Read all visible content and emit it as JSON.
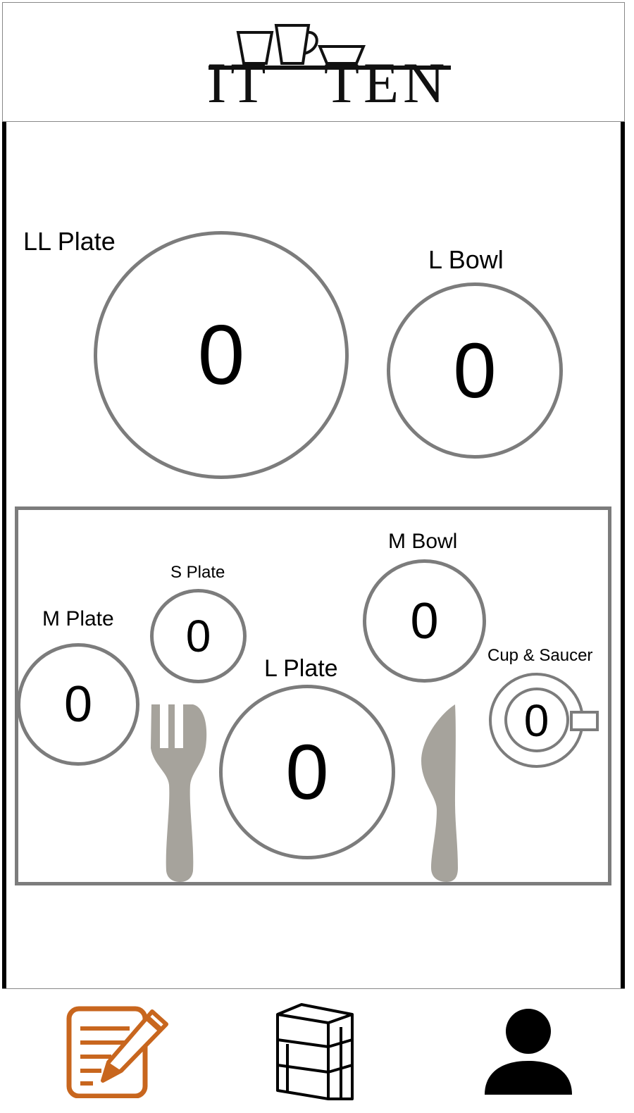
{
  "app": {
    "logo_text": "IT   TEN",
    "logo_icon": "cups-shelf-logo"
  },
  "top_dishes": [
    {
      "label": "LL Plate",
      "count": "0"
    },
    {
      "label": "L Bowl",
      "count": "0"
    }
  ],
  "table_setting": {
    "m_plate": {
      "label": "M Plate",
      "count": "0"
    },
    "s_plate": {
      "label": "S Plate",
      "count": "0"
    },
    "l_plate": {
      "label": "L Plate",
      "count": "0"
    },
    "m_bowl": {
      "label": "M Bowl",
      "count": "0"
    },
    "cup_saucer": {
      "label": "Cup & Saucer",
      "count": "0"
    },
    "utensils": [
      "fork-icon",
      "knife-icon"
    ]
  },
  "nav": {
    "items": [
      {
        "icon": "edit-note-icon",
        "color": "#C8661E"
      },
      {
        "icon": "shelf-icon",
        "color": "#000000"
      },
      {
        "icon": "user-icon",
        "color": "#000000"
      }
    ]
  },
  "colors": {
    "dish_border": "#7C7C7C",
    "utensil": "#A6A39C",
    "accent": "#C8661E"
  }
}
